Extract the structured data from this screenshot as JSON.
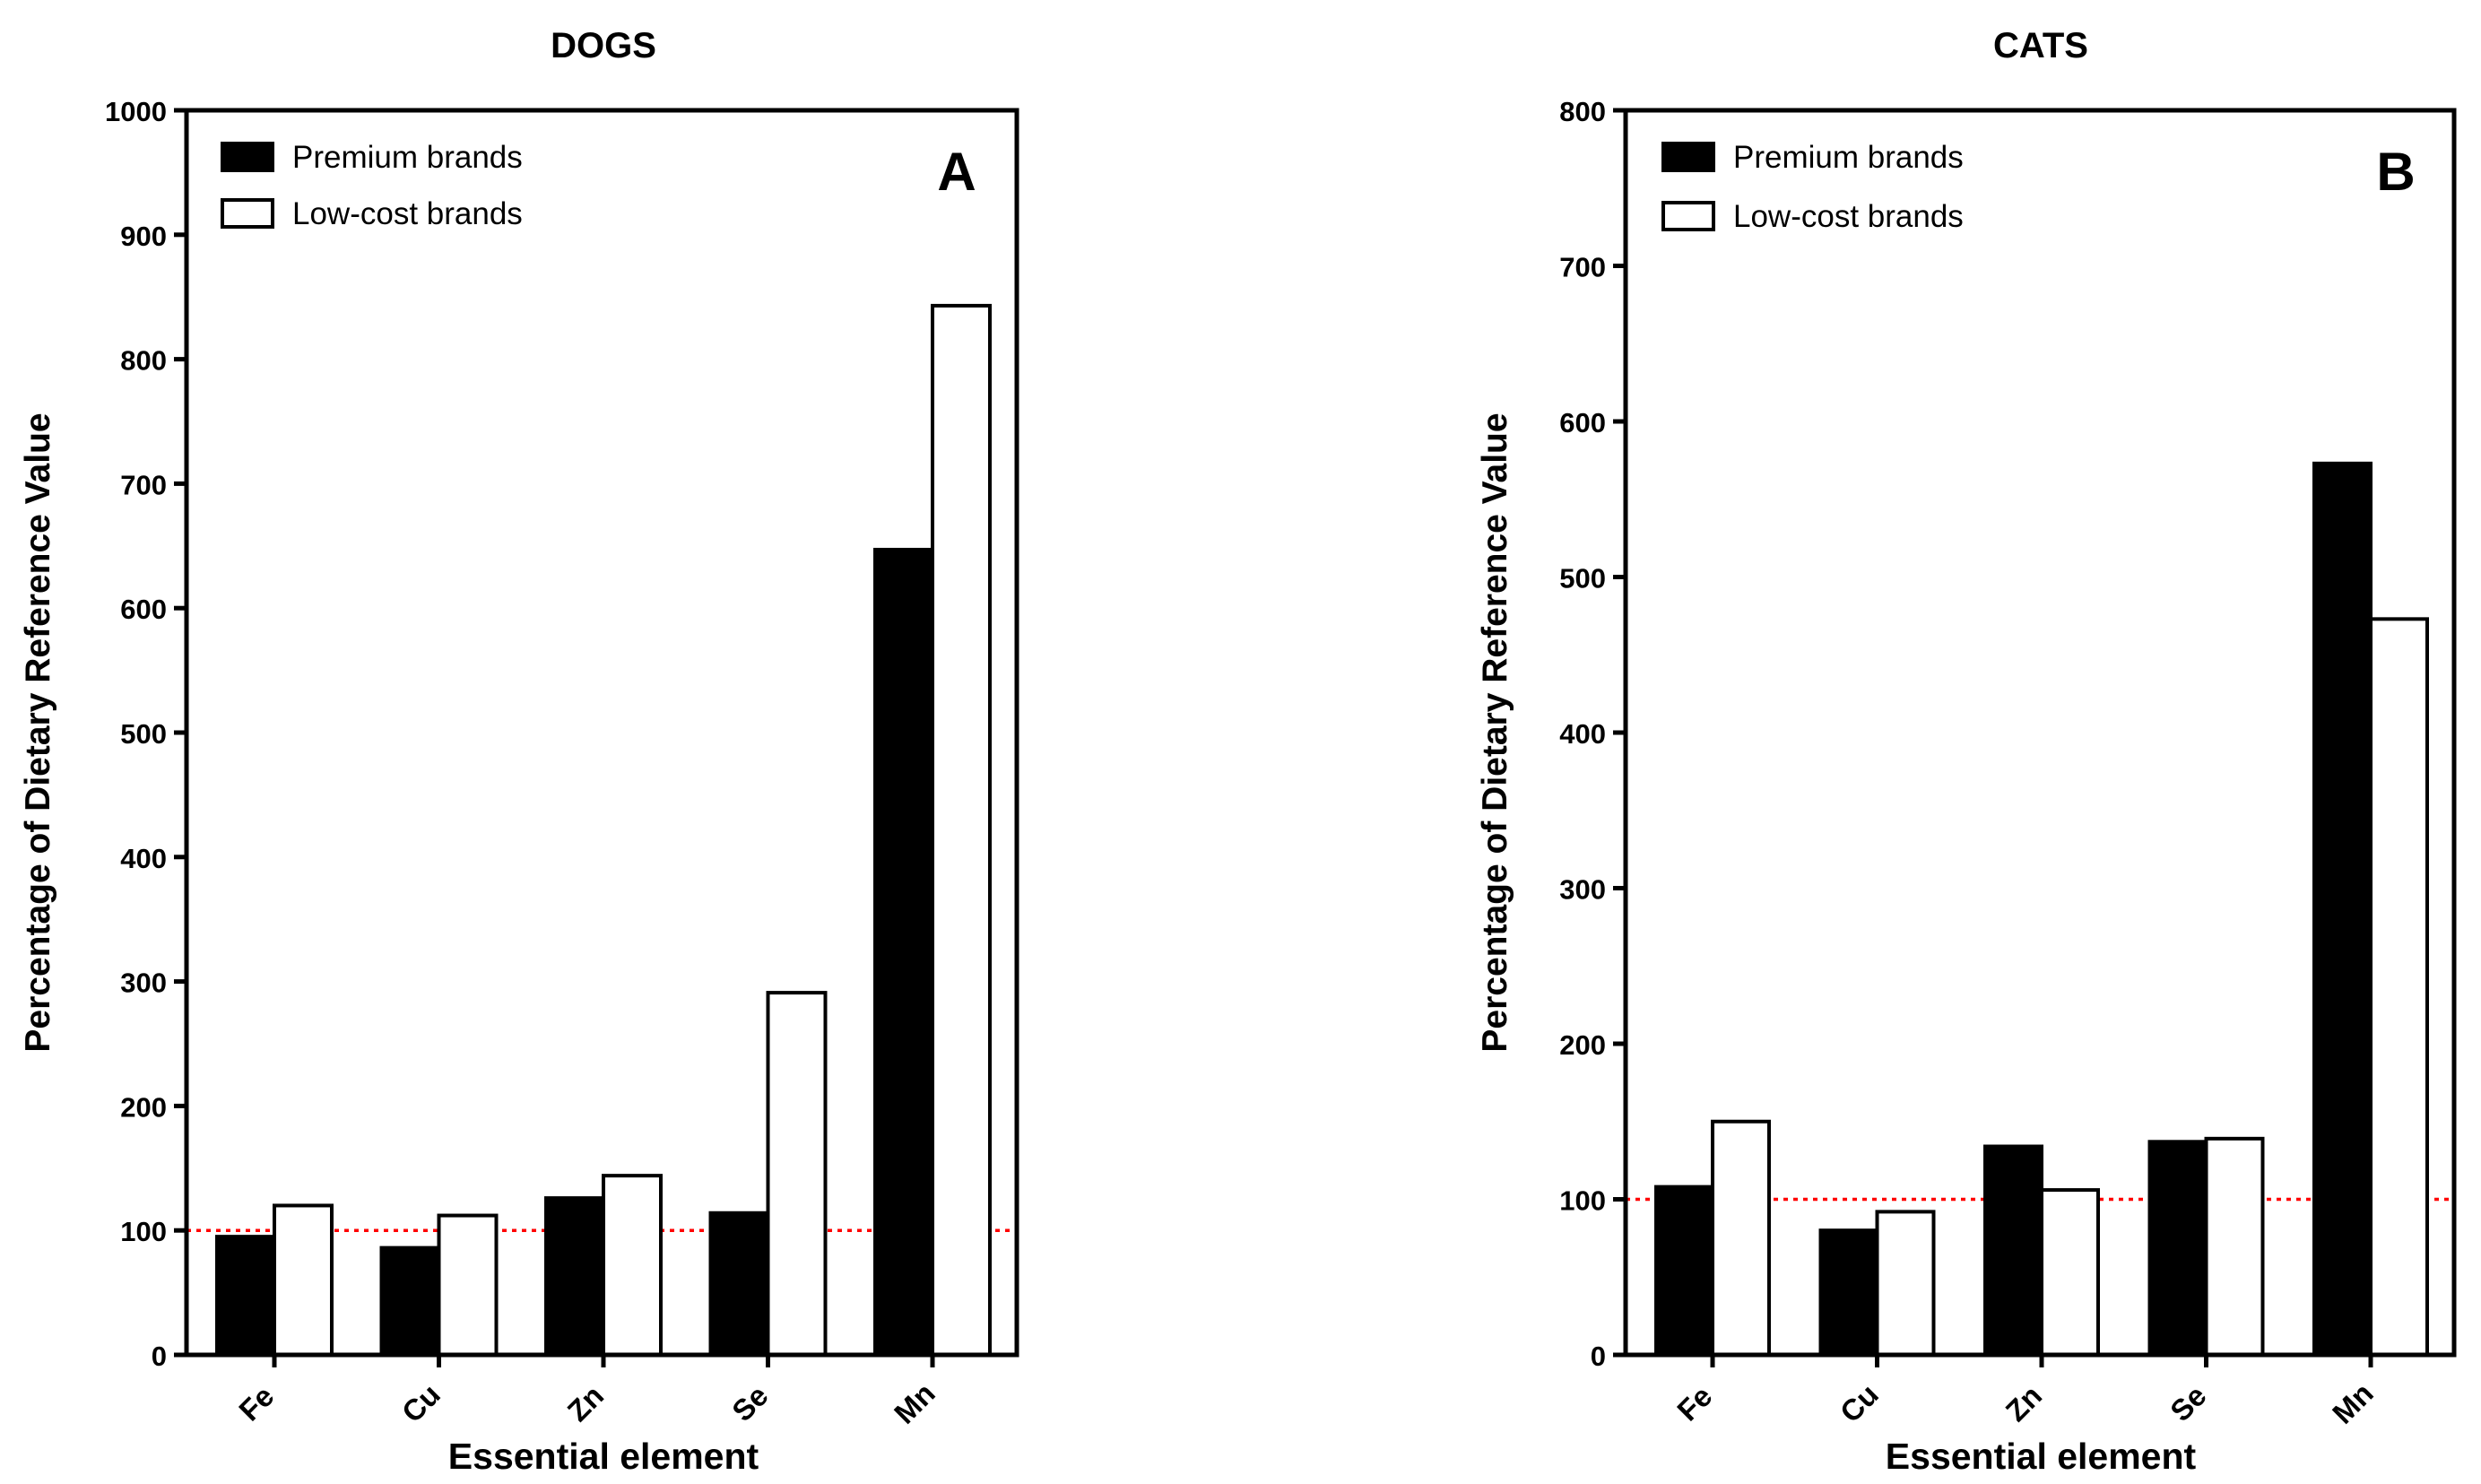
{
  "chart_data": [
    {
      "id": "dogs",
      "type": "bar",
      "title": "DOGS",
      "panel_label": "A",
      "xlabel": "Essential element",
      "ylabel": "Percentage of Dietary Reference Value",
      "categories": [
        "Fe",
        "Cu",
        "Zn",
        "Se",
        "Mn"
      ],
      "series": [
        {
          "name": "Premium brands",
          "fill": "#000000",
          "values": [
            95,
            86,
            126,
            114,
            647
          ]
        },
        {
          "name": "Low-cost brands",
          "fill": "#ffffff",
          "values": [
            120,
            112,
            144,
            291,
            843
          ]
        }
      ],
      "ylim": [
        0,
        1000
      ],
      "yticks": [
        0,
        100,
        200,
        300,
        400,
        500,
        600,
        700,
        800,
        900,
        1000
      ],
      "reference_line": {
        "value": 100,
        "color": "#ff0000",
        "style": "dotted"
      },
      "legend_position": "top-left"
    },
    {
      "id": "cats",
      "type": "bar",
      "title": "CATS",
      "panel_label": "B",
      "xlabel": "Essential element",
      "ylabel": "Percentage of Dietary Reference Value",
      "categories": [
        "Fe",
        "Cu",
        "Zn",
        "Se",
        "Mn"
      ],
      "series": [
        {
          "name": "Premium brands",
          "fill": "#000000",
          "values": [
            108,
            80,
            134,
            137,
            573
          ]
        },
        {
          "name": "Low-cost brands",
          "fill": "#ffffff",
          "values": [
            150,
            92,
            106,
            139,
            473
          ]
        }
      ],
      "ylim": [
        0,
        800
      ],
      "yticks": [
        0,
        100,
        200,
        300,
        400,
        500,
        600,
        700,
        800
      ],
      "reference_line": {
        "value": 100,
        "color": "#ff0000",
        "style": "dotted"
      },
      "legend_position": "top-left"
    }
  ]
}
